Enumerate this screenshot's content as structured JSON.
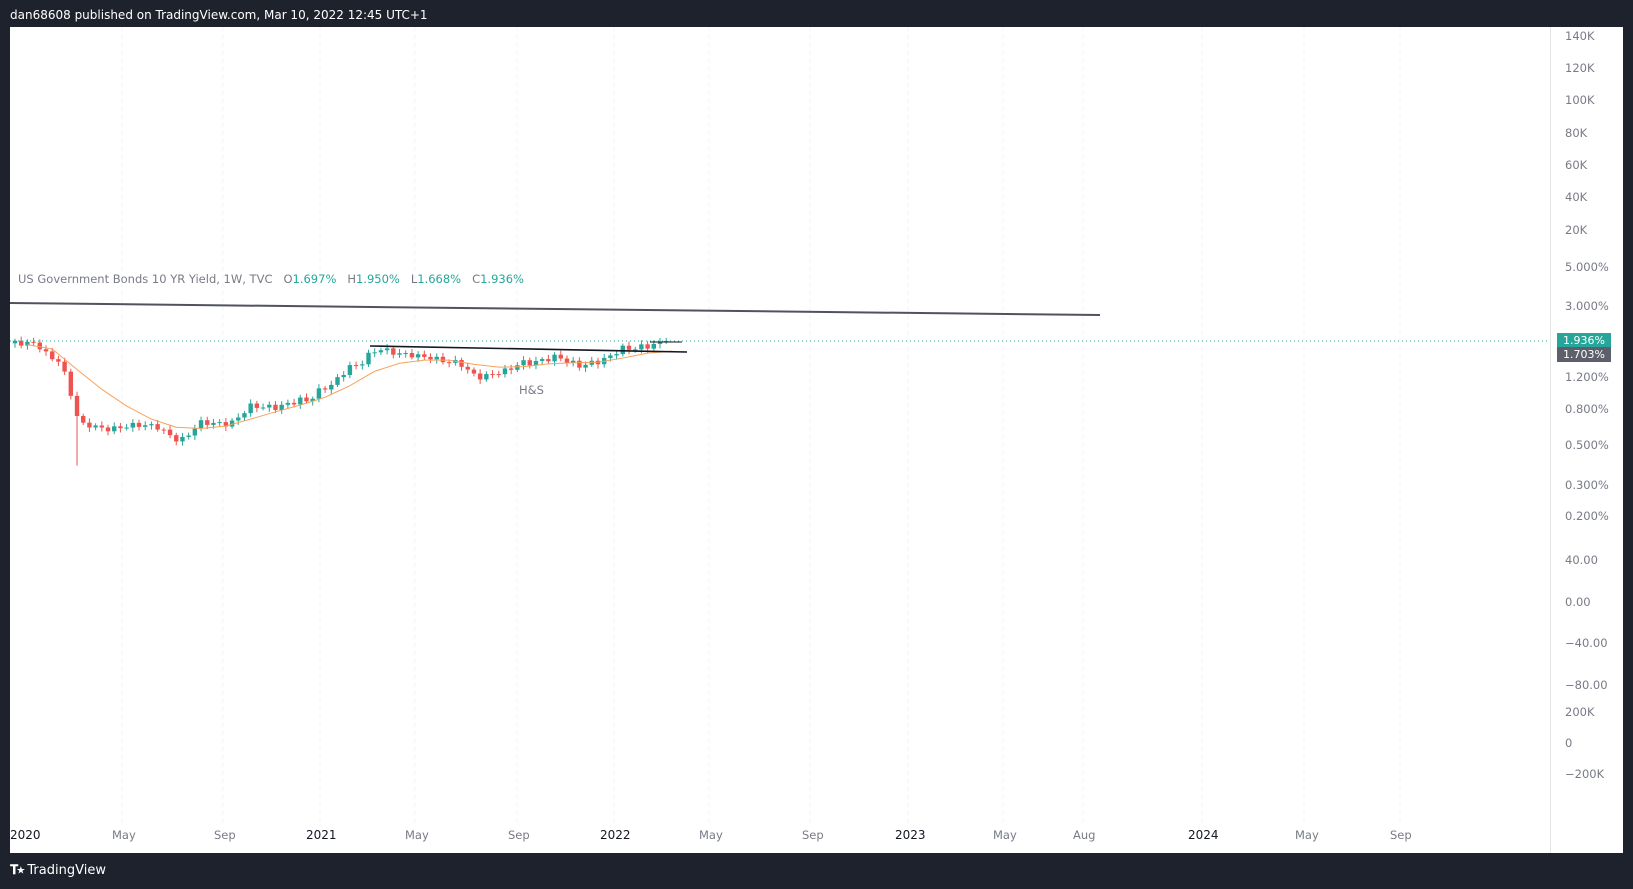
{
  "header": {
    "publish_text": "dan68608 published on TradingView.com, Mar 10, 2022 12:45 UTC+1"
  },
  "legend": {
    "title": "US Government Bonds 10 YR Yield, 1W, TVC",
    "o_label": "O",
    "o_val": "1.697%",
    "h_label": "H",
    "h_val": "1.950%",
    "l_label": "L",
    "l_val": "1.668%",
    "c_label": "C",
    "c_val": "1.936%"
  },
  "annotation": {
    "pattern_label": "H&S"
  },
  "price_axis": {
    "labels": [
      "140K",
      "120K",
      "100K",
      "80K",
      "60K",
      "40K",
      "20K",
      "5.000%",
      "3.000%",
      "1.200%",
      "0.800%",
      "0.500%",
      "0.300%",
      "0.200%",
      "40.00",
      "0.00",
      "−40.00",
      "−80.00",
      "200K",
      "0",
      "−200K"
    ],
    "last_price": "1.936%",
    "ma_value": "1.703%"
  },
  "time_axis": {
    "labels": [
      {
        "t": "2020",
        "year": true
      },
      {
        "t": "May",
        "year": false
      },
      {
        "t": "Sep",
        "year": false
      },
      {
        "t": "2021",
        "year": true
      },
      {
        "t": "May",
        "year": false
      },
      {
        "t": "Sep",
        "year": false
      },
      {
        "t": "2022",
        "year": true
      },
      {
        "t": "May",
        "year": false
      },
      {
        "t": "Sep",
        "year": false
      },
      {
        "t": "2023",
        "year": true
      },
      {
        "t": "May",
        "year": false
      },
      {
        "t": "Aug",
        "year": false
      },
      {
        "t": "2024",
        "year": true
      },
      {
        "t": "May",
        "year": false
      },
      {
        "t": "Sep",
        "year": false
      }
    ]
  },
  "footer": {
    "brand": "TradingView"
  },
  "colors": {
    "up": "#26a69a",
    "down": "#ef5350",
    "ma": "#f7a35c",
    "trendline": "#50535e"
  },
  "chart_data": {
    "type": "candlestick",
    "symbol": "US Government Bonds 10 YR Yield",
    "interval": "1W",
    "y_scale": "log",
    "x": [
      "Jan 2020",
      "Feb 2020",
      "Mar 2020",
      "Apr 2020",
      "May 2020",
      "Jun 2020",
      "Jul 2020",
      "Aug 2020",
      "Sep 2020",
      "Oct 2020",
      "Nov 2020",
      "Dec 2020",
      "Jan 2021",
      "Feb 2021",
      "Mar 2021",
      "Apr 2021",
      "May 2021",
      "Jun 2021",
      "Jul 2021",
      "Aug 2021",
      "Sep 2021",
      "Oct 2021",
      "Nov 2021",
      "Dec 2021",
      "Jan 2022",
      "Feb 2022",
      "Mar 2022"
    ],
    "close": [
      1.88,
      1.52,
      0.67,
      0.64,
      0.66,
      0.66,
      0.55,
      0.7,
      0.68,
      0.86,
      0.84,
      0.92,
      1.1,
      1.42,
      1.74,
      1.63,
      1.58,
      1.47,
      1.24,
      1.31,
      1.49,
      1.56,
      1.44,
      1.51,
      1.78,
      1.83,
      1.94
    ],
    "ma": [
      1.85,
      1.75,
      1.35,
      1.05,
      0.85,
      0.72,
      0.65,
      0.64,
      0.66,
      0.72,
      0.79,
      0.86,
      0.95,
      1.1,
      1.32,
      1.46,
      1.52,
      1.52,
      1.44,
      1.39,
      1.4,
      1.45,
      1.47,
      1.48,
      1.56,
      1.66,
      1.703
    ],
    "last": {
      "open": 1.697,
      "high": 1.95,
      "low": 1.668,
      "close": 1.936
    },
    "annotations": [
      "H&S"
    ]
  }
}
